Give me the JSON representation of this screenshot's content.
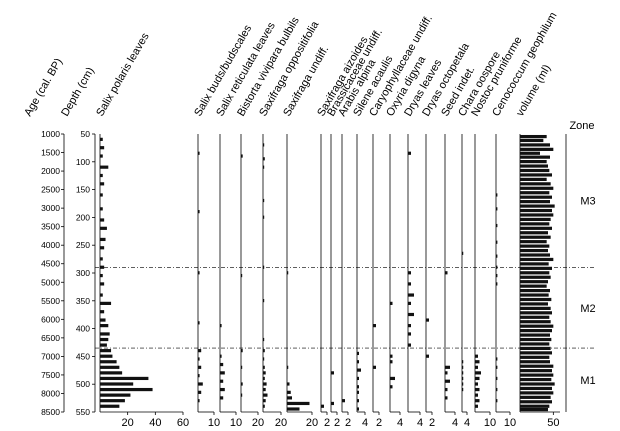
{
  "chart_data": {
    "type": "bar",
    "orientation": "horizontal",
    "age_axis": {
      "label": "Age (cal. BP)",
      "ticks": [
        1000,
        1500,
        2000,
        2500,
        3000,
        3500,
        4000,
        4500,
        5000,
        5500,
        6000,
        6500,
        7000,
        7500,
        8000,
        8500
      ]
    },
    "depth_axis": {
      "label": "Depth (cm)",
      "ticks": [
        50,
        100,
        150,
        200,
        250,
        300,
        350,
        400,
        450,
        500,
        550
      ],
      "range": [
        50,
        550
      ]
    },
    "zones": {
      "label": "Zone",
      "items": [
        {
          "name": "M3",
          "from": 50,
          "to": 290
        },
        {
          "name": "M2",
          "from": 290,
          "to": 435
        },
        {
          "name": "M1",
          "from": 435,
          "to": 550
        }
      ]
    },
    "series": [
      {
        "name": "Salix polaris leaves",
        "ticks": [
          20,
          40,
          60
        ],
        "max": 60,
        "values": [
          [
            60,
            2
          ],
          [
            75,
            3
          ],
          [
            90,
            2
          ],
          [
            110,
            6
          ],
          [
            125,
            2
          ],
          [
            140,
            3
          ],
          [
            160,
            2
          ],
          [
            185,
            2
          ],
          [
            205,
            3
          ],
          [
            220,
            5
          ],
          [
            240,
            4
          ],
          [
            255,
            3
          ],
          [
            275,
            2
          ],
          [
            290,
            3
          ],
          [
            305,
            2
          ],
          [
            320,
            3
          ],
          [
            340,
            2
          ],
          [
            355,
            8
          ],
          [
            370,
            3
          ],
          [
            385,
            4
          ],
          [
            395,
            6
          ],
          [
            410,
            7
          ],
          [
            420,
            6
          ],
          [
            430,
            5
          ],
          [
            440,
            8
          ],
          [
            450,
            9
          ],
          [
            460,
            12
          ],
          [
            470,
            14
          ],
          [
            480,
            16
          ],
          [
            490,
            35
          ],
          [
            500,
            24
          ],
          [
            510,
            38
          ],
          [
            520,
            22
          ],
          [
            530,
            18
          ],
          [
            540,
            14
          ]
        ]
      },
      {
        "name": "Salix buds/budscales",
        "ticks": [
          10
        ],
        "max": 10,
        "values": [
          [
            85,
            1
          ],
          [
            190,
            1
          ],
          [
            300,
            1
          ],
          [
            390,
            1
          ],
          [
            440,
            2
          ],
          [
            455,
            1
          ],
          [
            470,
            2
          ],
          [
            485,
            1
          ],
          [
            500,
            3
          ],
          [
            515,
            2
          ],
          [
            530,
            1
          ]
        ]
      },
      {
        "name": "Salix reticulata leaves",
        "ticks": [
          10
        ],
        "max": 10,
        "values": [
          [
            395,
            1
          ],
          [
            450,
            1
          ],
          [
            465,
            2
          ],
          [
            480,
            3
          ],
          [
            495,
            2
          ],
          [
            510,
            3
          ],
          [
            525,
            2
          ]
        ]
      },
      {
        "name": "Bistorta vivipara bulbils",
        "ticks": [
          20
        ],
        "max": 20,
        "values": [
          [
            90,
            2
          ],
          [
            305,
            1
          ],
          [
            440,
            2
          ],
          [
            470,
            1
          ],
          [
            500,
            2
          ],
          [
            520,
            1
          ]
        ]
      },
      {
        "name": "Saxifraga oppositifolia",
        "ticks": [
          20
        ],
        "max": 20,
        "values": [
          [
            70,
            1
          ],
          [
            95,
            2
          ],
          [
            110,
            1
          ],
          [
            170,
            1
          ],
          [
            200,
            1
          ],
          [
            290,
            1
          ],
          [
            350,
            1
          ],
          [
            420,
            1
          ],
          [
            440,
            2
          ],
          [
            455,
            1
          ],
          [
            470,
            2
          ],
          [
            480,
            3
          ],
          [
            490,
            2
          ],
          [
            500,
            4
          ],
          [
            510,
            3
          ],
          [
            520,
            5
          ],
          [
            530,
            3
          ],
          [
            540,
            2
          ]
        ]
      },
      {
        "name": "Saxifraga undiff.",
        "ticks": [
          20
        ],
        "max": 20,
        "values": [
          [
            300,
            1
          ],
          [
            470,
            1
          ],
          [
            500,
            2
          ],
          [
            515,
            3
          ],
          [
            525,
            4
          ],
          [
            535,
            18
          ],
          [
            545,
            10
          ]
        ]
      },
      {
        "name": "Saxifraga aizoides",
        "ticks": [
          2
        ],
        "max": 2,
        "values": [
          [
            540,
            1
          ]
        ]
      },
      {
        "name": "Brassicaceae undiff.",
        "ticks": [
          2
        ],
        "max": 2,
        "values": [
          [
            480,
            1
          ],
          [
            535,
            1
          ]
        ]
      },
      {
        "name": "Arabis alpina",
        "ticks": [
          2
        ],
        "max": 2,
        "values": [
          [
            530,
            1
          ]
        ]
      },
      {
        "name": "Silene acaulis",
        "ticks": [
          4
        ],
        "max": 4,
        "values": [
          [
            445,
            1
          ],
          [
            460,
            1
          ],
          [
            475,
            2
          ],
          [
            490,
            1
          ],
          [
            505,
            1
          ],
          [
            515,
            1
          ],
          [
            530,
            1
          ],
          [
            545,
            1
          ]
        ]
      },
      {
        "name": "Caryophyllaceae undiff.",
        "ticks": [
          2
        ],
        "max": 2,
        "values": [
          [
            395,
            1
          ],
          [
            470,
            1
          ]
        ]
      },
      {
        "name": "Oxyria digyna",
        "ticks": [
          4
        ],
        "max": 4,
        "values": [
          [
            355,
            1
          ],
          [
            450,
            1
          ],
          [
            460,
            1
          ],
          [
            490,
            2
          ],
          [
            505,
            1
          ]
        ]
      },
      {
        "name": "Dryas leaves",
        "ticks": [
          4
        ],
        "max": 4,
        "values": [
          [
            85,
            1
          ],
          [
            300,
            1
          ],
          [
            320,
            1
          ],
          [
            340,
            2
          ],
          [
            355,
            1
          ],
          [
            375,
            2
          ],
          [
            395,
            1
          ],
          [
            410,
            1
          ],
          [
            430,
            1
          ]
        ]
      },
      {
        "name": "Dryas octopetala",
        "ticks": [
          2
        ],
        "max": 2,
        "values": [
          [
            385,
            1
          ],
          [
            450,
            1
          ]
        ]
      },
      {
        "name": "Seed indet.",
        "ticks": [
          4
        ],
        "max": 4,
        "values": [
          [
            300,
            1
          ],
          [
            470,
            2
          ],
          [
            480,
            1
          ],
          [
            495,
            2
          ],
          [
            510,
            1
          ],
          [
            525,
            1
          ]
        ]
      },
      {
        "name": "Chara oospore",
        "ticks": [
          4
        ],
        "max": 4,
        "values": [
          [
            265,
            1
          ],
          [
            460,
            1
          ],
          [
            470,
            1
          ],
          [
            480,
            1
          ],
          [
            490,
            1
          ],
          [
            500,
            1
          ],
          [
            510,
            1
          ]
        ]
      },
      {
        "name": "Nostoc pruniforme",
        "ticks": [
          10
        ],
        "max": 10,
        "values": [
          [
            450,
            2
          ],
          [
            460,
            3
          ],
          [
            470,
            2
          ],
          [
            480,
            4
          ],
          [
            490,
            3
          ],
          [
            500,
            2
          ],
          [
            510,
            3
          ],
          [
            520,
            2
          ],
          [
            530,
            3
          ],
          [
            540,
            2
          ]
        ]
      },
      {
        "name": "Cenococcum geophilum",
        "ticks": [
          10
        ],
        "max": 10,
        "values": [
          [
            160,
            1
          ],
          [
            185,
            1
          ],
          [
            215,
            1
          ],
          [
            245,
            1
          ],
          [
            270,
            1
          ],
          [
            290,
            1
          ],
          [
            305,
            1
          ],
          [
            320,
            1
          ],
          [
            455,
            1
          ],
          [
            470,
            1
          ],
          [
            490,
            1
          ],
          [
            510,
            1
          ],
          [
            530,
            1
          ]
        ]
      },
      {
        "name": "volume (ml)",
        "ticks": [
          50
        ],
        "max": 60,
        "values": [
          [
            55,
            40
          ],
          [
            62,
            35
          ],
          [
            70,
            45
          ],
          [
            78,
            50
          ],
          [
            85,
            30
          ],
          [
            92,
            45
          ],
          [
            100,
            40
          ],
          [
            108,
            42
          ],
          [
            116,
            44
          ],
          [
            124,
            48
          ],
          [
            132,
            40
          ],
          [
            140,
            46
          ],
          [
            148,
            50
          ],
          [
            156,
            44
          ],
          [
            164,
            48
          ],
          [
            172,
            45
          ],
          [
            180,
            52
          ],
          [
            188,
            48
          ],
          [
            196,
            50
          ],
          [
            204,
            46
          ],
          [
            212,
            44
          ],
          [
            220,
            48
          ],
          [
            228,
            42
          ],
          [
            236,
            46
          ],
          [
            244,
            40
          ],
          [
            252,
            44
          ],
          [
            260,
            42
          ],
          [
            268,
            45
          ],
          [
            276,
            50
          ],
          [
            284,
            43
          ],
          [
            292,
            48
          ],
          [
            300,
            44
          ],
          [
            308,
            46
          ],
          [
            316,
            42
          ],
          [
            324,
            40
          ],
          [
            332,
            45
          ],
          [
            340,
            43
          ],
          [
            348,
            47
          ],
          [
            356,
            42
          ],
          [
            364,
            46
          ],
          [
            372,
            48
          ],
          [
            380,
            44
          ],
          [
            388,
            46
          ],
          [
            396,
            50
          ],
          [
            404,
            48
          ],
          [
            412,
            45
          ],
          [
            420,
            47
          ],
          [
            428,
            44
          ],
          [
            436,
            46
          ],
          [
            444,
            48
          ],
          [
            452,
            44
          ],
          [
            460,
            45
          ],
          [
            468,
            50
          ],
          [
            476,
            48
          ],
          [
            484,
            50
          ],
          [
            492,
            47
          ],
          [
            500,
            52
          ],
          [
            508,
            48
          ],
          [
            516,
            50
          ],
          [
            524,
            46
          ],
          [
            532,
            48
          ],
          [
            540,
            44
          ],
          [
            546,
            42
          ]
        ]
      }
    ]
  }
}
